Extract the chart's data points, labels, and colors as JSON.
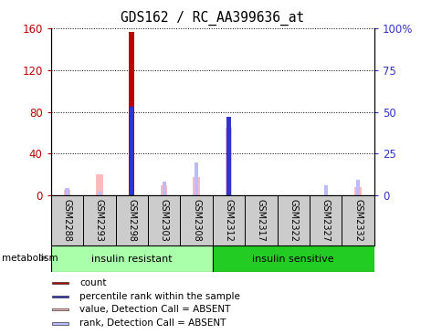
{
  "title": "GDS162 / RC_AA399636_at",
  "samples": [
    "GSM2288",
    "GSM2293",
    "GSM2298",
    "GSM2303",
    "GSM2308",
    "GSM2312",
    "GSM2317",
    "GSM2322",
    "GSM2327",
    "GSM2332"
  ],
  "count_values": [
    0,
    0,
    157,
    0,
    0,
    0,
    0,
    0,
    0,
    0
  ],
  "percentile_rank_left": [
    0,
    0,
    85,
    0,
    0,
    0,
    0,
    0,
    0,
    0
  ],
  "percentile_rank_right": [
    0,
    0,
    0,
    0,
    0,
    47,
    0,
    0,
    0,
    0
  ],
  "value_absent": [
    5,
    20,
    0,
    10,
    18,
    65,
    0,
    0,
    0,
    8
  ],
  "rank_absent": [
    7,
    4,
    4,
    13,
    32,
    4,
    0,
    0,
    10,
    15
  ],
  "groups": [
    {
      "label": "insulin resistant",
      "start": 0,
      "end": 5,
      "color": "#aaffaa"
    },
    {
      "label": "insulin sensitive",
      "start": 5,
      "end": 10,
      "color": "#22cc22"
    }
  ],
  "group_label": "metabolism",
  "ylim_left": [
    0,
    160
  ],
  "ylim_right": [
    0,
    100
  ],
  "yticks_left": [
    0,
    40,
    80,
    120,
    160
  ],
  "yticks_right": [
    0,
    25,
    50,
    75,
    100
  ],
  "ytick_labels_right": [
    "0",
    "25",
    "50",
    "75",
    "100%"
  ],
  "ytick_labels_left": [
    "0",
    "40",
    "80",
    "120",
    "160"
  ],
  "count_color": "#bb0000",
  "percentile_color": "#3333cc",
  "value_absent_color": "#ffbbbb",
  "rank_absent_color": "#bbbbff",
  "background_color": "#ffffff",
  "tick_label_area_color": "#cccccc"
}
